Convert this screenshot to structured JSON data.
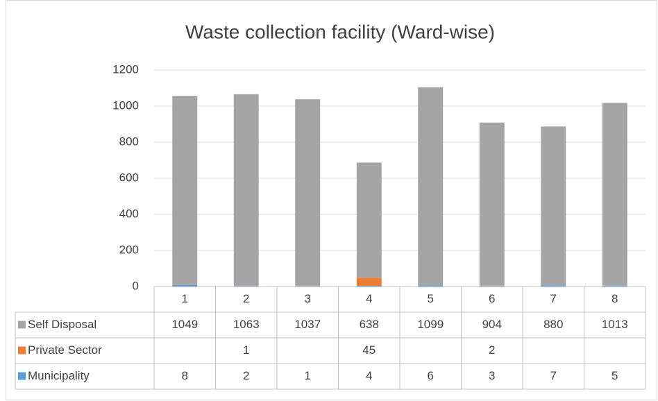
{
  "chart_data": {
    "type": "bar",
    "stacked": true,
    "title": "Waste collection facility (Ward-wise)",
    "categories": [
      "1",
      "2",
      "3",
      "4",
      "5",
      "6",
      "7",
      "8"
    ],
    "series": [
      {
        "name": "Self Disposal",
        "color": "#a5a5a5",
        "values": [
          1049,
          1063,
          1037,
          638,
          1099,
          904,
          880,
          1013
        ]
      },
      {
        "name": "Private Sector",
        "color": "#ed7d31",
        "values": [
          null,
          1,
          null,
          45,
          null,
          2,
          null,
          null
        ]
      },
      {
        "name": "Municipality",
        "color": "#5b9bd5",
        "values": [
          8,
          2,
          1,
          4,
          6,
          3,
          7,
          5
        ]
      }
    ],
    "ylim": [
      0,
      1200
    ],
    "yticks": [
      0,
      200,
      400,
      600,
      800,
      1000,
      1200
    ],
    "grid": true
  }
}
